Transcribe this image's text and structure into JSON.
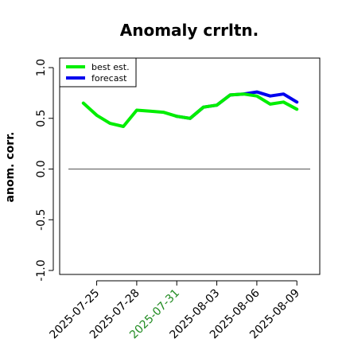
{
  "chart_data": {
    "type": "line",
    "title": "Anomaly crrltn.",
    "xlabel": "",
    "ylabel": "anom. corr.",
    "ylim": [
      -1.0,
      1.0
    ],
    "yticks": [
      "-1.0",
      "-0.5",
      "0.0",
      "0.5",
      "1.0"
    ],
    "ytick_values": [
      -1.0,
      -0.5,
      0.0,
      0.5,
      1.0
    ],
    "xlim": [
      "2025-07-23",
      "2025-08-10"
    ],
    "xticks": [
      {
        "label": "2025-07-25",
        "date": "2025-07-25",
        "color": "#000000"
      },
      {
        "label": "2025-07-28",
        "date": "2025-07-28",
        "color": "#000000"
      },
      {
        "label": "2025-07-31",
        "date": "2025-07-31",
        "color": "#228B22"
      },
      {
        "label": "2025-08-03",
        "date": "2025-08-03",
        "color": "#000000"
      },
      {
        "label": "2025-08-06",
        "date": "2025-08-06",
        "color": "#000000"
      },
      {
        "label": "2025-08-09",
        "date": "2025-08-09",
        "color": "#000000"
      }
    ],
    "reference_line": 0.0,
    "legend": {
      "placement": "top-left"
    },
    "series": [
      {
        "name": "best est.",
        "color": "#00ee00",
        "x": [
          "2025-07-24",
          "2025-07-25",
          "2025-07-26",
          "2025-07-27",
          "2025-07-28",
          "2025-07-29",
          "2025-07-30",
          "2025-07-31"
        ],
        "values": [
          0.65,
          0.53,
          0.45,
          0.42,
          0.58,
          0.57,
          0.56,
          0.52
        ]
      },
      {
        "name": "forecast",
        "color": "#0000ee",
        "x": [
          "2025-07-31",
          "2025-08-01",
          "2025-08-02",
          "2025-08-03",
          "2025-08-04",
          "2025-08-05",
          "2025-08-06",
          "2025-08-07",
          "2025-08-08",
          "2025-08-09"
        ],
        "values": [
          0.52,
          0.5,
          0.61,
          0.63,
          0.73,
          0.74,
          0.76,
          0.72,
          0.74,
          0.66
        ]
      },
      {
        "name": "",
        "color": "#00ee00",
        "x": [
          "2025-07-31",
          "2025-08-01",
          "2025-08-02",
          "2025-08-03",
          "2025-08-04",
          "2025-08-05",
          "2025-08-06",
          "2025-08-07",
          "2025-08-08",
          "2025-08-09"
        ],
        "values": [
          0.52,
          0.5,
          0.61,
          0.63,
          0.73,
          0.74,
          0.72,
          0.64,
          0.66,
          0.59
        ]
      }
    ]
  }
}
